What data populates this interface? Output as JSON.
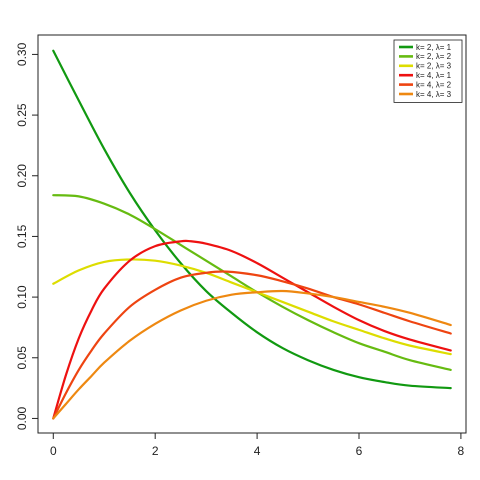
{
  "chart_data": {
    "type": "line",
    "title": "",
    "xlabel": "",
    "ylabel": "",
    "xlim": [
      -0.3,
      8.1
    ],
    "ylim": [
      -0.012,
      0.316
    ],
    "x_ticks": [
      0,
      2,
      4,
      6,
      8
    ],
    "x_tick_labels": [
      "0",
      "2",
      "4",
      "6",
      "8"
    ],
    "y_ticks": [
      0.0,
      0.05,
      0.1,
      0.15,
      0.2,
      0.25,
      0.3
    ],
    "y_tick_labels": [
      "0.00",
      "0.05",
      "0.10",
      "0.15",
      "0.20",
      "0.25",
      "0.30"
    ],
    "grid": false,
    "legend_position": "top-right",
    "x_range": [
      0,
      7.8
    ],
    "series": [
      {
        "name": "k= 2, λ= 1",
        "color": "#119911",
        "x": [
          0,
          0.5,
          1,
          1.5,
          2,
          2.5,
          3,
          3.5,
          4,
          4.5,
          5,
          5.5,
          6,
          6.5,
          7,
          7.8
        ],
        "y": [
          0.303,
          0.262,
          0.222,
          0.186,
          0.155,
          0.128,
          0.105,
          0.087,
          0.071,
          0.058,
          0.048,
          0.04,
          0.034,
          0.03,
          0.027,
          0.025
        ]
      },
      {
        "name": "k= 2, λ= 2",
        "color": "#66bb11",
        "x": [
          0,
          0.5,
          1,
          1.5,
          2,
          2.5,
          3,
          3.5,
          4,
          4.5,
          5,
          5.5,
          6,
          6.5,
          7,
          7.8
        ],
        "y": [
          0.184,
          0.183,
          0.177,
          0.168,
          0.156,
          0.143,
          0.13,
          0.117,
          0.104,
          0.092,
          0.081,
          0.071,
          0.062,
          0.055,
          0.048,
          0.04
        ]
      },
      {
        "name": "k= 2, λ= 3",
        "color": "#dddd00",
        "x": [
          0,
          0.5,
          1,
          1.5,
          2,
          2.5,
          3,
          3.5,
          4,
          4.5,
          5,
          5.5,
          6,
          6.5,
          7,
          7.8
        ],
        "y": [
          0.111,
          0.122,
          0.129,
          0.131,
          0.13,
          0.126,
          0.12,
          0.112,
          0.104,
          0.096,
          0.088,
          0.08,
          0.073,
          0.066,
          0.06,
          0.053
        ]
      },
      {
        "name": "k= 4, λ= 1",
        "color": "#ee1111",
        "x": [
          0,
          0.25,
          0.5,
          0.75,
          1,
          1.5,
          2,
          2.5,
          2.7,
          3,
          3.5,
          4,
          4.5,
          5,
          5.5,
          6,
          6.5,
          7,
          7.8
        ],
        "y": [
          0.0,
          0.036,
          0.066,
          0.089,
          0.107,
          0.13,
          0.142,
          0.146,
          0.146,
          0.144,
          0.138,
          0.128,
          0.116,
          0.104,
          0.092,
          0.081,
          0.072,
          0.065,
          0.056
        ]
      },
      {
        "name": "k= 4, λ= 2",
        "color": "#ee4411",
        "x": [
          0,
          0.25,
          0.5,
          0.75,
          1,
          1.5,
          2,
          2.5,
          3,
          3.4,
          4,
          4.5,
          5,
          5.5,
          6,
          6.5,
          7,
          7.8
        ],
        "y": [
          0.0,
          0.021,
          0.04,
          0.056,
          0.07,
          0.092,
          0.106,
          0.116,
          0.12,
          0.121,
          0.118,
          0.113,
          0.107,
          0.1,
          0.094,
          0.087,
          0.08,
          0.07
        ]
      },
      {
        "name": "k= 4, λ= 3",
        "color": "#ee8811",
        "x": [
          0,
          0.25,
          0.5,
          0.75,
          1,
          1.5,
          2,
          2.5,
          3,
          3.5,
          4,
          4.5,
          5,
          5.5,
          6,
          6.5,
          7,
          7.8
        ],
        "y": [
          0.0,
          0.012,
          0.024,
          0.035,
          0.046,
          0.064,
          0.078,
          0.089,
          0.097,
          0.102,
          0.104,
          0.105,
          0.103,
          0.1,
          0.096,
          0.092,
          0.087,
          0.077
        ]
      }
    ]
  }
}
